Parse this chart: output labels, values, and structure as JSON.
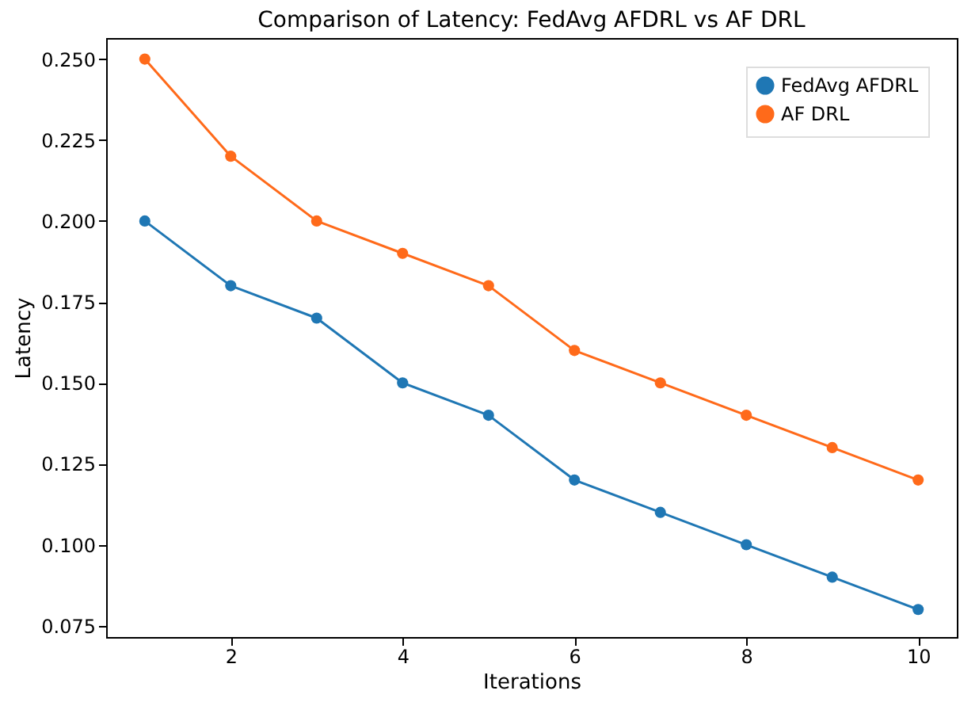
{
  "chart_data": {
    "type": "line",
    "title": "Comparison of Latency: FedAvg AFDRL vs AF DRL",
    "xlabel": "Iterations",
    "ylabel": "Latency",
    "x": [
      1,
      2,
      3,
      4,
      5,
      6,
      7,
      8,
      9,
      10
    ],
    "series": [
      {
        "name": "FedAvg AFDRL",
        "color": "#1f77b4",
        "values": [
          0.2,
          0.18,
          0.17,
          0.15,
          0.14,
          0.12,
          0.11,
          0.1,
          0.09,
          0.08
        ]
      },
      {
        "name": "AF DRL",
        "color": "#ff6a1a",
        "values": [
          0.25,
          0.22,
          0.2,
          0.19,
          0.18,
          0.16,
          0.15,
          0.14,
          0.13,
          0.12
        ]
      }
    ],
    "xlim": [
      0.55,
      10.45
    ],
    "xticks": [
      2,
      4,
      6,
      8,
      10
    ],
    "ylim": [
      0.0715,
      0.2565
    ],
    "yticks": [
      0.075,
      {
        "value": 0.1,
        "label": "0.100"
      },
      0.125,
      {
        "value": 0.15,
        "label": "0.150"
      },
      0.175,
      {
        "value": 0.2,
        "label": "0.200"
      },
      0.225,
      {
        "value": 0.25,
        "label": "0.250"
      }
    ],
    "grid": false,
    "legend": "top right",
    "marker": "circle",
    "line_style": "solid"
  }
}
